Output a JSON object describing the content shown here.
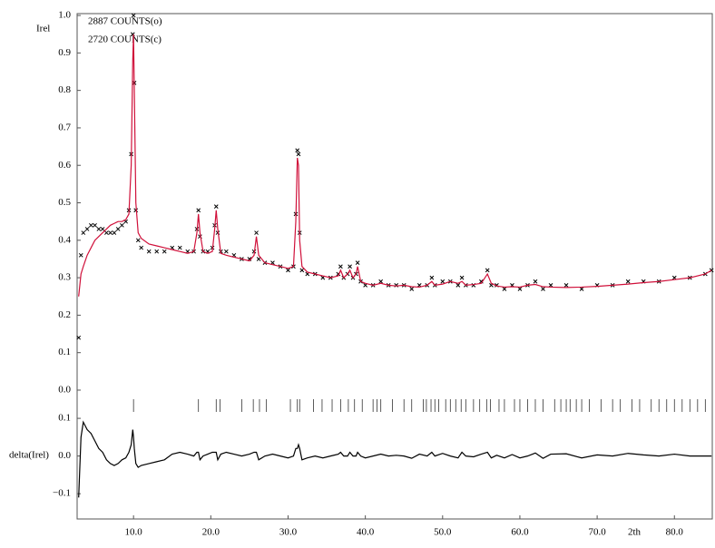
{
  "chart_data": [
    {
      "type": "line",
      "ylabel": "Irel",
      "annotations": [
        "2887 COUNTS(o)",
        "2720 COUNTS(c)"
      ],
      "xlim": [
        2.7,
        84.9
      ],
      "ylim": [
        -0.017,
        1.005
      ],
      "yticks": [
        {
          "value": 0,
          "label": "0.0"
        },
        0.1,
        0.2,
        0.3,
        0.4,
        0.5,
        0.6,
        0.7,
        0.8,
        0.9,
        {
          "value": 1,
          "label": "1.0"
        }
      ],
      "x": [
        2.9,
        3.2,
        3.5,
        4,
        4.5,
        5,
        5.5,
        6,
        6.5,
        7,
        7.5,
        8,
        8.5,
        9,
        9.4,
        9.7,
        9.9,
        10.0,
        10.1,
        10.3,
        10.6,
        11,
        12,
        13,
        14,
        15,
        16,
        17,
        17.8,
        18.2,
        18.4,
        18.6,
        19,
        19.6,
        20.2,
        20.5,
        20.7,
        20.9,
        21.3,
        22,
        23,
        24,
        25,
        25.6,
        25.9,
        26.2,
        27,
        28,
        29,
        30,
        30.7,
        31.0,
        31.2,
        31.35,
        31.5,
        31.8,
        32.5,
        33.5,
        34.5,
        35.5,
        36.5,
        36.8,
        37.2,
        37.7,
        38.0,
        38.4,
        38.8,
        39.0,
        39.4,
        40,
        41,
        42,
        43,
        44,
        45,
        46,
        47,
        48,
        48.6,
        49,
        50,
        51,
        52,
        52.5,
        53,
        54,
        55,
        55.8,
        56.3,
        57,
        58,
        59,
        60,
        61,
        62,
        63,
        64,
        66,
        68,
        70,
        72,
        74,
        76,
        78,
        80,
        82,
        84,
        84.8
      ],
      "series": [
        {
          "color": "#000000",
          "marker": "x",
          "values": [
            0.14,
            0.36,
            0.42,
            0.43,
            0.44,
            0.44,
            0.43,
            0.43,
            0.42,
            0.42,
            0.42,
            0.43,
            0.44,
            0.45,
            0.48,
            0.63,
            0.95,
            1.0,
            0.82,
            0.48,
            0.4,
            0.38,
            0.37,
            0.37,
            0.37,
            0.38,
            0.38,
            0.37,
            0.37,
            0.43,
            0.48,
            0.41,
            0.37,
            0.37,
            0.38,
            0.44,
            0.49,
            0.42,
            0.37,
            0.37,
            0.36,
            0.35,
            0.35,
            0.37,
            0.42,
            0.35,
            0.34,
            0.34,
            0.33,
            0.32,
            0.33,
            0.47,
            0.64,
            0.63,
            0.42,
            0.32,
            0.31,
            0.31,
            0.3,
            0.3,
            0.31,
            0.33,
            0.3,
            0.31,
            0.33,
            0.3,
            0.31,
            0.34,
            0.29,
            0.28,
            0.28,
            0.29,
            0.28,
            0.28,
            0.28,
            0.27,
            0.28,
            0.28,
            0.3,
            0.28,
            0.29,
            0.29,
            0.28,
            0.3,
            0.28,
            0.28,
            0.29,
            0.32,
            0.28,
            0.28,
            0.27,
            0.28,
            0.27,
            0.28,
            0.29,
            0.27,
            0.28,
            0.28,
            0.27,
            0.28,
            0.28,
            0.29,
            0.29,
            0.29,
            0.3,
            0.3,
            0.31,
            0.32
          ]
        },
        {
          "color": "#d0103a",
          "values": [
            0.25,
            0.31,
            0.33,
            0.36,
            0.38,
            0.4,
            0.41,
            0.42,
            0.43,
            0.44,
            0.445,
            0.45,
            0.45,
            0.455,
            0.47,
            0.6,
            0.88,
            0.95,
            0.8,
            0.5,
            0.42,
            0.405,
            0.39,
            0.385,
            0.38,
            0.375,
            0.37,
            0.365,
            0.37,
            0.42,
            0.47,
            0.42,
            0.37,
            0.365,
            0.37,
            0.43,
            0.48,
            0.43,
            0.365,
            0.36,
            0.355,
            0.35,
            0.345,
            0.36,
            0.41,
            0.36,
            0.34,
            0.335,
            0.33,
            0.325,
            0.33,
            0.45,
            0.62,
            0.6,
            0.4,
            0.33,
            0.315,
            0.31,
            0.305,
            0.3,
            0.305,
            0.32,
            0.3,
            0.31,
            0.32,
            0.3,
            0.31,
            0.33,
            0.29,
            0.285,
            0.28,
            0.285,
            0.28,
            0.278,
            0.28,
            0.276,
            0.275,
            0.28,
            0.29,
            0.28,
            0.283,
            0.29,
            0.285,
            0.29,
            0.28,
            0.282,
            0.285,
            0.31,
            0.285,
            0.278,
            0.275,
            0.276,
            0.275,
            0.28,
            0.282,
            0.276,
            0.275,
            0.274,
            0.275,
            0.277,
            0.28,
            0.283,
            0.287,
            0.29,
            0.295,
            0.3,
            0.31,
            0.32
          ]
        }
      ]
    },
    {
      "type": "line",
      "ylabel": "delta(Irel)",
      "xlabel": "2th",
      "xlim": [
        2.7,
        84.9
      ],
      "xticks": [
        {
          "value": 10,
          "label": "10.0"
        },
        {
          "value": 20,
          "label": "20.0"
        },
        {
          "value": 30,
          "label": "30.0"
        },
        {
          "value": 40,
          "label": "40.0"
        },
        {
          "value": 50,
          "label": "50.0"
        },
        {
          "value": 60,
          "label": "60.0"
        },
        {
          "value": 70,
          "label": "70.0"
        },
        {
          "value": 80,
          "label": "80.0"
        }
      ],
      "ylim": [
        -0.167,
        0.158
      ],
      "yticks": [
        {
          "value": -0.1,
          "label": "−0.1"
        },
        {
          "value": 0,
          "label": "0.0"
        },
        0.1
      ],
      "reflections": [
        10.0,
        18.4,
        20.7,
        21.2,
        24.0,
        25.5,
        26.3,
        27.2,
        30.3,
        31.2,
        31.5,
        33.3,
        34.4,
        35.7,
        36.8,
        37.8,
        38.6,
        39.6,
        41.0,
        41.5,
        42.0,
        43.5,
        45.0,
        46.0,
        47.5,
        47.9,
        48.5,
        49.0,
        49.5,
        50.4,
        51.0,
        51.7,
        52.4,
        53.0,
        54.0,
        54.8,
        55.7,
        56.2,
        57.3,
        58.0,
        59.3,
        60.0,
        61.0,
        62.0,
        63.0,
        64.5,
        65.3,
        66.0,
        66.5,
        67.3,
        68.0,
        69.0,
        70.5,
        72.0,
        73.0,
        74.5,
        75.5,
        77.0,
        78.0,
        79.0,
        80.0,
        81.0,
        82.0,
        83.0,
        84.0
      ],
      "x": [
        2.9,
        3.2,
        3.5,
        4,
        4.5,
        5,
        5.5,
        6,
        6.5,
        7,
        7.5,
        8,
        8.5,
        9,
        9.4,
        9.7,
        9.9,
        10.0,
        10.1,
        10.3,
        10.6,
        11,
        12,
        13,
        14,
        15,
        16,
        17,
        17.8,
        18.2,
        18.4,
        18.6,
        19,
        19.6,
        20.2,
        20.5,
        20.7,
        20.9,
        21.3,
        22,
        23,
        24,
        25,
        25.6,
        25.9,
        26.2,
        27,
        28,
        29,
        30,
        30.7,
        31.0,
        31.2,
        31.35,
        31.5,
        31.8,
        32.5,
        33.5,
        34.5,
        35.5,
        36.5,
        36.8,
        37.2,
        37.7,
        38.0,
        38.4,
        38.8,
        39.0,
        39.4,
        40,
        41,
        42,
        43,
        44,
        45,
        46,
        47,
        48,
        48.6,
        49,
        50,
        51,
        52,
        52.5,
        53,
        54,
        55,
        55.8,
        56.3,
        57,
        58,
        59,
        60,
        61,
        62,
        63,
        64,
        66,
        68,
        70,
        72,
        74,
        76,
        78,
        80,
        82,
        84,
        84.8
      ],
      "series": [
        {
          "color": "#000000",
          "values": [
            -0.11,
            0.05,
            0.09,
            0.07,
            0.06,
            0.04,
            0.02,
            0.01,
            -0.01,
            -0.02,
            -0.025,
            -0.02,
            -0.01,
            -0.005,
            0.01,
            0.03,
            0.07,
            0.05,
            0.02,
            -0.02,
            -0.03,
            -0.025,
            -0.02,
            -0.015,
            -0.01,
            0.005,
            0.01,
            0.005,
            0,
            0.01,
            0.01,
            -0.01,
            0,
            0.005,
            0.01,
            0.01,
            0.01,
            -0.01,
            0.005,
            0.01,
            0.005,
            0,
            0.005,
            0.01,
            0.01,
            -0.01,
            0,
            0.005,
            0,
            -0.005,
            0,
            0.02,
            0.02,
            0.03,
            0.02,
            -0.01,
            -0.005,
            0,
            -0.005,
            0,
            0.005,
            0.01,
            0,
            0,
            0.01,
            0,
            0,
            0.01,
            0,
            -0.005,
            0,
            0.005,
            0,
            0.002,
            0,
            -0.006,
            0.005,
            0,
            0.01,
            0,
            0.007,
            0,
            -0.005,
            0.01,
            0,
            -0.002,
            0.005,
            0.01,
            -0.005,
            0.002,
            -0.005,
            0.004,
            -0.005,
            0,
            0.008,
            -0.006,
            0.005,
            0.006,
            -0.005,
            0.003,
            0,
            0.007,
            0.003,
            0,
            0.005,
            0,
            0,
            0
          ]
        }
      ]
    }
  ]
}
